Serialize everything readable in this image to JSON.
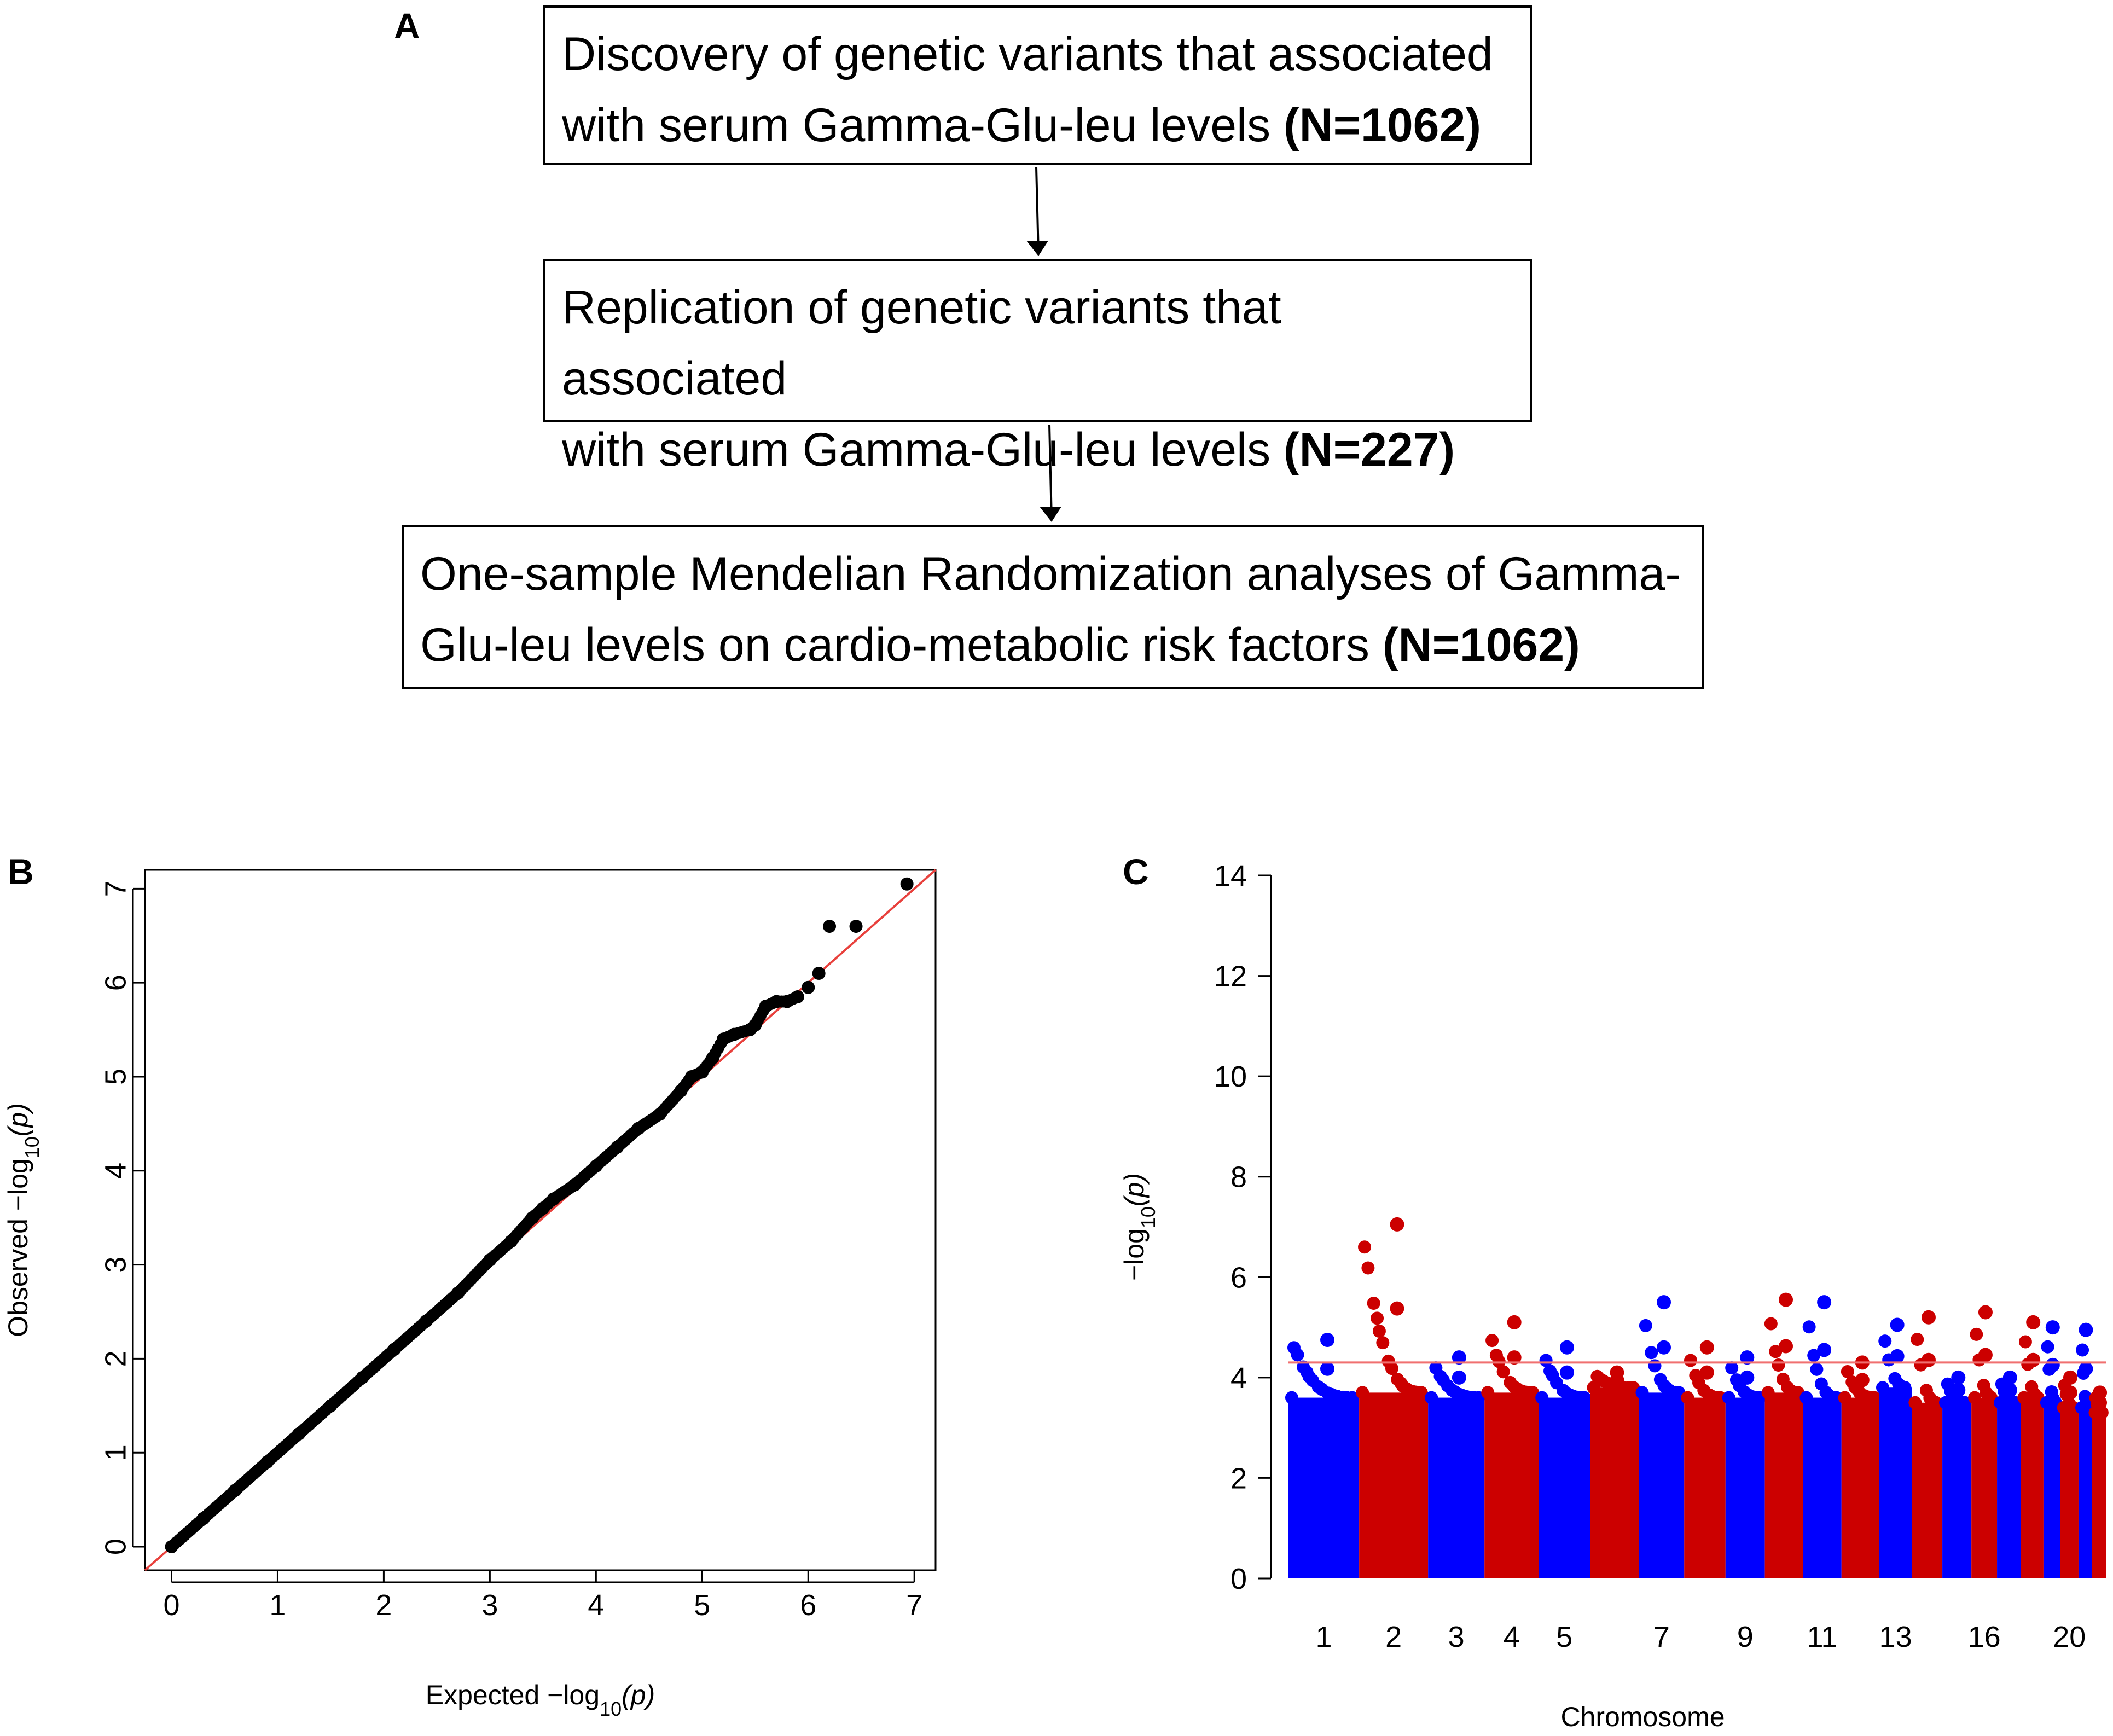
{
  "panel_labels": {
    "a": "A",
    "b": "B",
    "c": "C"
  },
  "flowchart": {
    "box1": {
      "line1": "Discovery of genetic variants that associated",
      "line2": "with serum Gamma-Glu-leu levels ",
      "n": "(N=1062)"
    },
    "box2": {
      "line1": "Replication of genetic variants that associated",
      "line2": "with serum Gamma-Glu-leu levels ",
      "n": "(N=227)"
    },
    "box3": {
      "line1": "One-sample Mendelian Randomization analyses of Gamma-",
      "line2": "Glu-leu levels on cardio-metabolic risk factors   ",
      "n": "(N=1062)"
    }
  },
  "chart_data": [
    {
      "type": "scatter",
      "panel": "B",
      "xlabel": "Expected  −log",
      "xlabel_sub": "10",
      "xlabel_tail": "(p)",
      "ylabel": "Observed  −log",
      "ylabel_sub": "10",
      "ylabel_tail": "(p)",
      "xticks": [
        0,
        1,
        2,
        3,
        4,
        5,
        6,
        7
      ],
      "yticks": [
        0,
        1,
        2,
        3,
        4,
        5,
        6,
        7
      ],
      "xlim": [
        -0.25,
        7.2
      ],
      "ylim": [
        -0.25,
        7.2
      ],
      "reference_line": {
        "from": [
          -0.25,
          -0.25
        ],
        "to": [
          7.2,
          7.2
        ],
        "color": "#e8403c"
      },
      "points_color": "#000000",
      "series": [
        {
          "x": [
            0,
            0.3,
            0.6,
            0.9,
            1.2,
            1.5,
            1.8,
            2.1,
            2.4,
            2.7,
            3.0,
            3.2,
            3.4,
            3.5,
            3.6,
            3.8,
            4.0,
            4.2,
            4.4,
            4.6,
            4.8,
            4.9,
            5.0,
            5.1,
            5.2,
            5.3,
            5.45,
            5.5,
            5.6,
            5.7,
            5.8,
            5.9,
            6.0,
            6.1,
            6.2,
            6.45,
            6.93
          ],
          "y": [
            0,
            0.3,
            0.6,
            0.9,
            1.2,
            1.5,
            1.8,
            2.1,
            2.4,
            2.7,
            3.05,
            3.25,
            3.5,
            3.6,
            3.7,
            3.85,
            4.05,
            4.25,
            4.45,
            4.6,
            4.85,
            5.0,
            5.05,
            5.2,
            5.4,
            5.45,
            5.5,
            5.55,
            5.75,
            5.8,
            5.8,
            5.85,
            5.95,
            6.1,
            6.6,
            6.6,
            7.05
          ]
        }
      ]
    },
    {
      "type": "scatter",
      "panel": "C",
      "xlabel": "Chromosome",
      "ylabel": "−log",
      "ylabel_sub": "10",
      "ylabel_tail": "(p)",
      "ylim": [
        0,
        14
      ],
      "yticks": [
        0,
        2,
        4,
        6,
        8,
        10,
        12,
        14
      ],
      "xticks": [
        "1",
        "2",
        "3",
        "4",
        "5",
        "7",
        "9",
        "11",
        "13",
        "16",
        "20"
      ],
      "threshold": {
        "y": 4.3,
        "color": "#f07070"
      },
      "colors": {
        "odd": "#0000ff",
        "even": "#cc0000"
      },
      "chromosomes": [
        {
          "chr": "1",
          "peak": 4.75,
          "base": 3.6
        },
        {
          "chr": "2",
          "peak": 7.05,
          "base": 3.7
        },
        {
          "chr": "3",
          "peak": 4.4,
          "base": 3.6
        },
        {
          "chr": "4",
          "peak": 5.1,
          "base": 3.7
        },
        {
          "chr": "5",
          "peak": 4.6,
          "base": 3.6
        },
        {
          "chr": "6",
          "peak": 4.1,
          "base": 3.8
        },
        {
          "chr": "7",
          "peak": 5.5,
          "base": 3.7
        },
        {
          "chr": "8",
          "peak": 4.6,
          "base": 3.6
        },
        {
          "chr": "9",
          "peak": 4.4,
          "base": 3.6
        },
        {
          "chr": "10",
          "peak": 5.55,
          "base": 3.7
        },
        {
          "chr": "11",
          "peak": 5.5,
          "base": 3.6
        },
        {
          "chr": "12",
          "peak": 4.3,
          "base": 3.6
        },
        {
          "chr": "13",
          "peak": 5.05,
          "base": 3.8
        },
        {
          "chr": "14",
          "peak": 5.2,
          "base": 3.5
        },
        {
          "chr": "15",
          "peak": 4.0,
          "base": 3.5
        },
        {
          "chr": "16",
          "peak": 5.3,
          "base": 3.6
        },
        {
          "chr": "17",
          "peak": 4.0,
          "base": 3.5
        },
        {
          "chr": "18",
          "peak": 5.1,
          "base": 3.6
        },
        {
          "chr": "19",
          "peak": 5.0,
          "base": 3.5
        },
        {
          "chr": "20",
          "peak": 4.0,
          "base": 3.4
        },
        {
          "chr": "21",
          "peak": 4.95,
          "base": 3.4
        },
        {
          "chr": "22",
          "peak": 3.7,
          "base": 3.3
        }
      ]
    }
  ]
}
